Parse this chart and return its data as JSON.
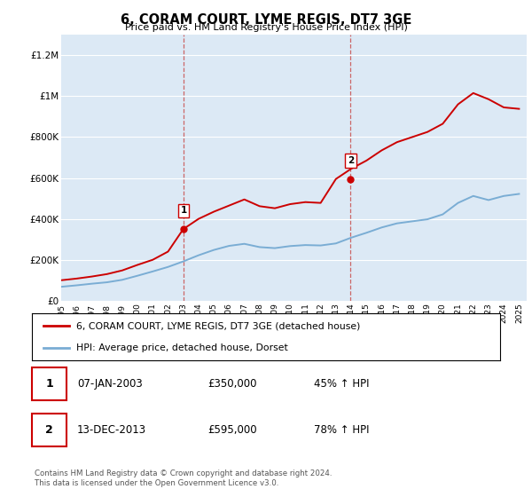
{
  "title": "6, CORAM COURT, LYME REGIS, DT7 3GE",
  "subtitle": "Price paid vs. HM Land Registry's House Price Index (HPI)",
  "background_color": "#dce9f5",
  "legend_label_red": "6, CORAM COURT, LYME REGIS, DT7 3GE (detached house)",
  "legend_label_blue": "HPI: Average price, detached house, Dorset",
  "sale1_date": "07-JAN-2003",
  "sale1_price": "£350,000",
  "sale1_hpi": "45% ↑ HPI",
  "sale1_year": 2003.03,
  "sale1_value": 350000,
  "sale2_date": "13-DEC-2013",
  "sale2_price": "£595,000",
  "sale2_hpi": "78% ↑ HPI",
  "sale2_year": 2013.96,
  "sale2_value": 595000,
  "footer": "Contains HM Land Registry data © Crown copyright and database right 2024.\nThis data is licensed under the Open Government Licence v3.0.",
  "red_color": "#cc0000",
  "blue_color": "#7aadd4",
  "dashed_color": "#cc6666",
  "ylim": [
    0,
    1300000
  ],
  "yticks": [
    0,
    200000,
    400000,
    600000,
    800000,
    1000000,
    1200000
  ],
  "ytick_labels": [
    "£0",
    "£200K",
    "£400K",
    "£600K",
    "£800K",
    "£1M",
    "£1.2M"
  ],
  "hpi_years": [
    1995,
    1996,
    1997,
    1998,
    1999,
    2000,
    2001,
    2002,
    2003,
    2004,
    2005,
    2006,
    2007,
    2008,
    2009,
    2010,
    2011,
    2012,
    2013,
    2014,
    2015,
    2016,
    2017,
    2018,
    2019,
    2020,
    2021,
    2022,
    2023,
    2024,
    2025
  ],
  "hpi_values": [
    68000,
    75000,
    83000,
    90000,
    102000,
    122000,
    143000,
    165000,
    192000,
    222000,
    248000,
    268000,
    278000,
    262000,
    257000,
    267000,
    272000,
    270000,
    280000,
    308000,
    332000,
    358000,
    378000,
    388000,
    398000,
    422000,
    478000,
    512000,
    492000,
    512000,
    522000
  ],
  "red_years": [
    1995,
    1996,
    1997,
    1998,
    1999,
    2000,
    2001,
    2002,
    2003,
    2004,
    2005,
    2006,
    2007,
    2008,
    2009,
    2010,
    2011,
    2012,
    2013,
    2014,
    2015,
    2016,
    2017,
    2018,
    2019,
    2020,
    2021,
    2022,
    2023,
    2024,
    2025
  ],
  "red_values": [
    100000,
    108000,
    118000,
    130000,
    148000,
    175000,
    200000,
    240000,
    350000,
    400000,
    435000,
    465000,
    495000,
    462000,
    452000,
    472000,
    482000,
    478000,
    595000,
    645000,
    685000,
    735000,
    775000,
    800000,
    825000,
    865000,
    960000,
    1015000,
    985000,
    945000,
    938000
  ]
}
